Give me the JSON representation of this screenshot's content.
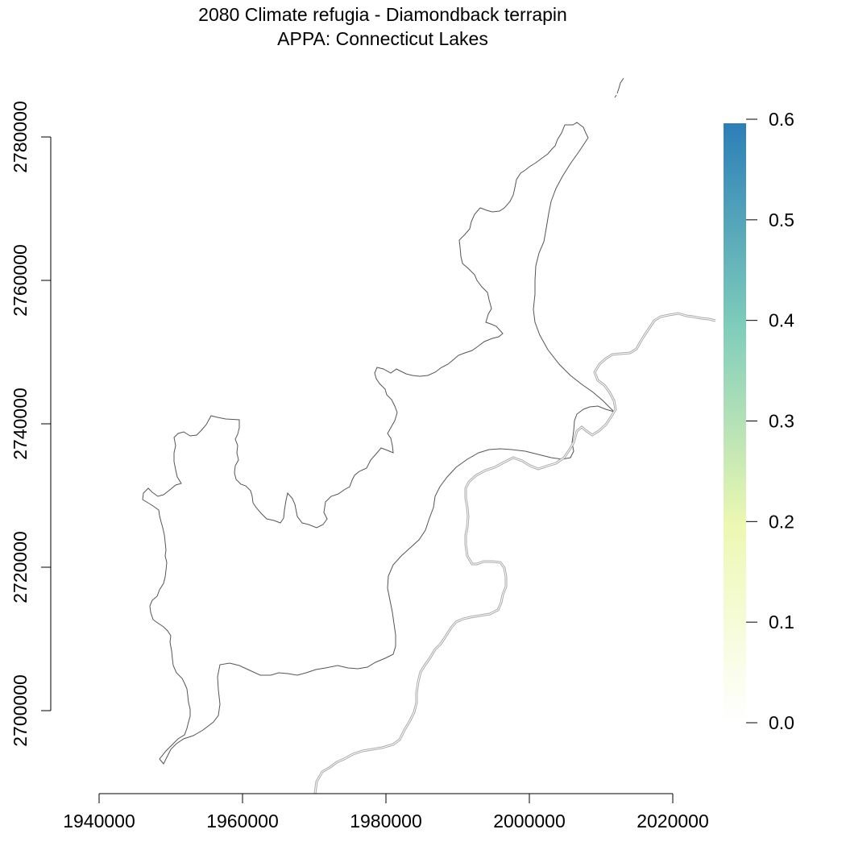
{
  "title": {
    "line1": "2080 Climate refugia - Diamondback terrapin",
    "line2": "APPA: Connecticut Lakes"
  },
  "colors": {
    "boundary": "#555555",
    "state_line": "#aaaaaa",
    "legend_ramp": [
      "#ffffff",
      "#edf8b1",
      "#7fcdbb",
      "#2c7fb8"
    ]
  },
  "chart_data": {
    "type": "map",
    "x_axis": {
      "ticks": [
        1940000,
        1960000,
        1980000,
        2000000,
        2020000
      ],
      "tick_labels": [
        "1940000",
        "1960000",
        "1980000",
        "2000000",
        "2020000"
      ],
      "range": [
        1940000,
        2020000
      ]
    },
    "y_axis": {
      "ticks": [
        2700000,
        2720000,
        2740000,
        2760000,
        2780000
      ],
      "tick_labels": [
        "2700000",
        "2720000",
        "2740000",
        "2760000",
        "2780000"
      ],
      "range": [
        2700000,
        2780000
      ]
    },
    "legend": {
      "ticks": [
        0.0,
        0.1,
        0.2,
        0.3,
        0.4,
        0.5,
        0.6
      ],
      "tick_labels": [
        "0.0",
        "0.1",
        "0.2",
        "0.3",
        "0.4",
        "0.5",
        "0.6"
      ],
      "range": [
        0.0,
        0.6
      ],
      "placement": "right"
    }
  }
}
